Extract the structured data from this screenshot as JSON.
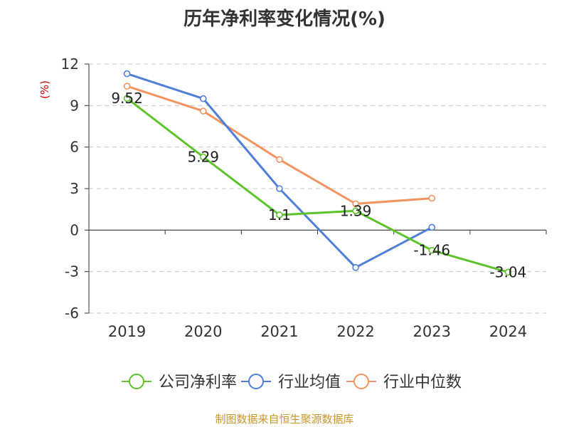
{
  "chart_data": {
    "type": "line",
    "title": "历年净利率变化情况(%)",
    "ylabel": "(%)",
    "categories": [
      "2019",
      "2020",
      "2021",
      "2022",
      "2023",
      "2024"
    ],
    "ylim": [
      -6,
      12
    ],
    "yticks": [
      "12",
      "9",
      "6",
      "3",
      "0",
      "-3",
      "-6"
    ],
    "ytick_values": [
      12,
      9,
      6,
      3,
      0,
      -3,
      -6
    ],
    "grid": true,
    "legend_position": "bottom",
    "series": [
      {
        "name": "公司净利率",
        "color": "#5ec32b",
        "values": [
          9.52,
          5.29,
          1.1,
          1.39,
          -1.46,
          -3.04
        ],
        "labels": [
          "9.52",
          "5.29",
          "1.1",
          "1.39",
          "-1.46",
          "-3.04"
        ]
      },
      {
        "name": "行业均值",
        "color": "#4f7fd6",
        "values": [
          11.3,
          9.5,
          3.0,
          -2.7,
          0.2,
          null
        ],
        "labels": [
          null,
          null,
          null,
          null,
          null,
          null
        ]
      },
      {
        "name": "行业中位数",
        "color": "#f29360",
        "values": [
          10.4,
          8.6,
          5.1,
          1.9,
          2.3,
          null
        ],
        "labels": [
          null,
          null,
          null,
          null,
          null,
          null
        ]
      }
    ]
  },
  "footer": {
    "source": "制图数据来自恒生聚源数据库"
  },
  "colors": {
    "axis": "#333333",
    "grid": "#c8c8c8",
    "ylabel": "#dd0000",
    "source": "#c8962b"
  }
}
